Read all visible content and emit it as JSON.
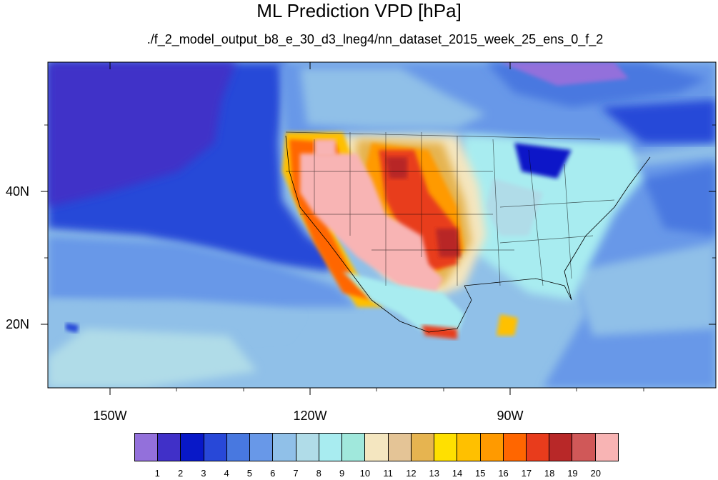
{
  "title": "ML Prediction VPD [hPa]",
  "subtitle": "./f_2_model_output_b8_e_30_d3_lneg4/nn_dataset_2015_week_25_ens_0_f_2",
  "map": {
    "type": "filled-contour",
    "variable": "VPD",
    "unit": "hPa",
    "region": "North America / northeast Pacific",
    "lon_range": [
      -159,
      -61
    ],
    "lat_range": [
      11,
      59
    ],
    "lat_labels": [
      "40N",
      "20N"
    ],
    "lon_labels": [
      "150W",
      "120W",
      "90W"
    ]
  },
  "colorbar": {
    "labels": [
      "1",
      "2",
      "3",
      "4",
      "5",
      "6",
      "7",
      "8",
      "9",
      "10",
      "11",
      "12",
      "13",
      "14",
      "15",
      "16",
      "17",
      "18",
      "19",
      "20"
    ],
    "colors": [
      "#9370db",
      "#4030c8",
      "#0818c8",
      "#2848d8",
      "#4878e0",
      "#6898e8",
      "#90c0e8",
      "#b0dce8",
      "#a8ecf0",
      "#a0e8dc",
      "#f4e6c0",
      "#e4c496",
      "#e6b450",
      "#ffe000",
      "#ffc000",
      "#ff9a00",
      "#ff6600",
      "#e83c1c",
      "#b82828",
      "#d05858",
      "#f8b4b4"
    ]
  }
}
